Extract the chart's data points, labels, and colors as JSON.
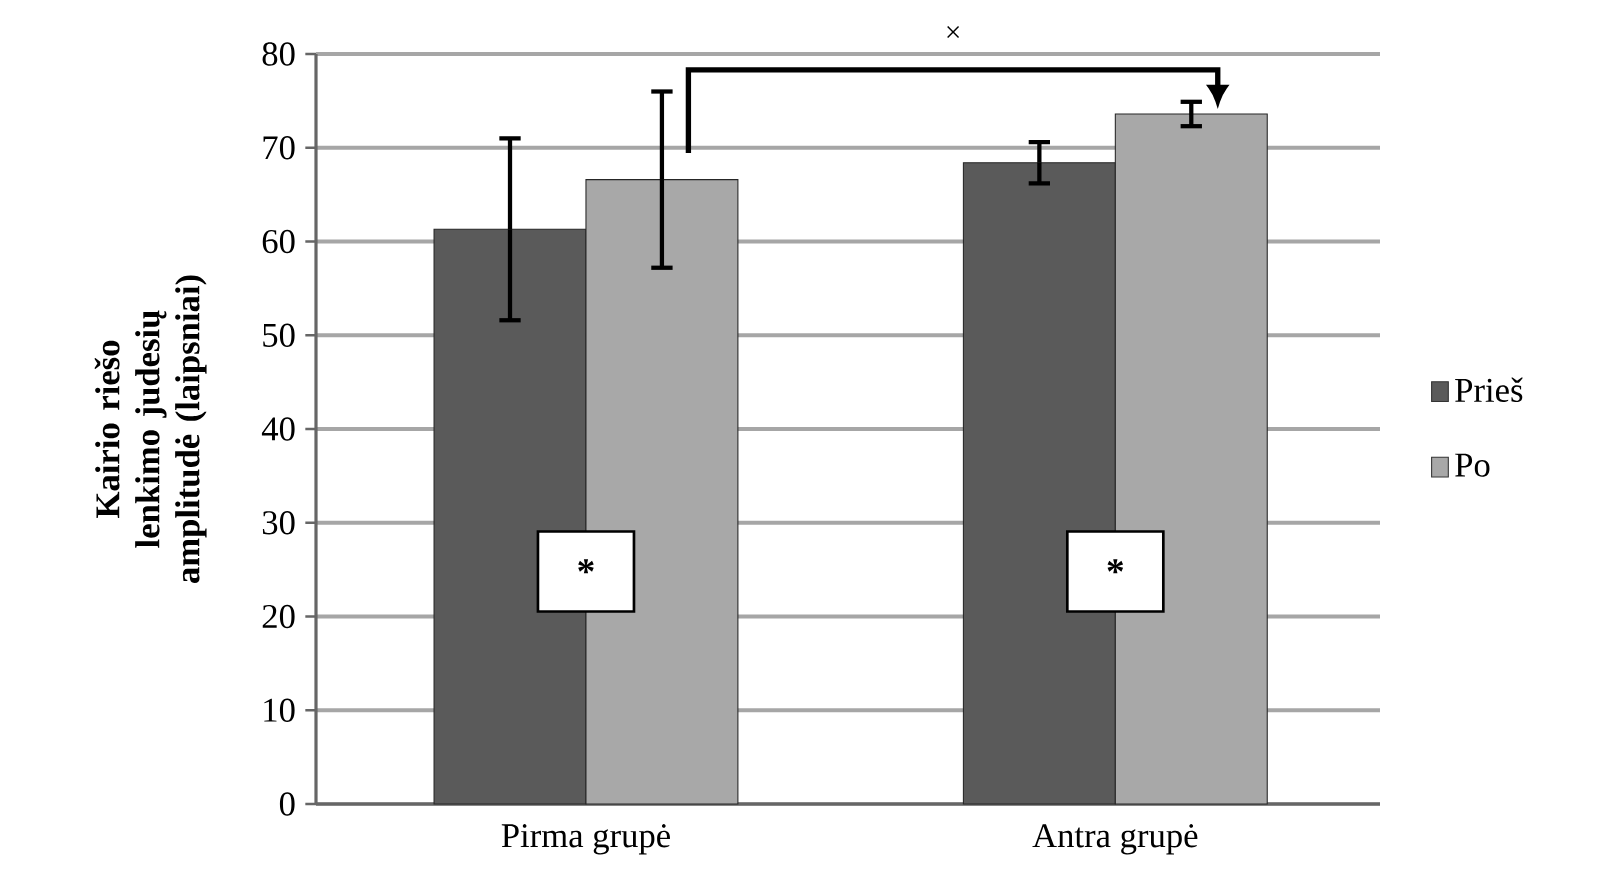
{
  "chart_data": {
    "type": "bar",
    "categories": [
      "Pirma grupė",
      "Antra grupė"
    ],
    "series": [
      {
        "name": "Prieš",
        "color": "#5a5a5a",
        "values": [
          61.3,
          68.4
        ],
        "errors": [
          9.7,
          2.2
        ]
      },
      {
        "name": "Po",
        "color": "#a8a8a8",
        "values": [
          66.6,
          73.6
        ],
        "errors": [
          9.4,
          1.3
        ]
      }
    ],
    "ylabel": "Kairio riešo lenkimo judesių amplitudė (laipsniai)",
    "ylim": [
      0,
      80
    ],
    "yticks": [
      0,
      10,
      20,
      30,
      40,
      50,
      60,
      70,
      80
    ],
    "grid": "y",
    "legend": "right",
    "annotations": [
      "×",
      "*",
      "*"
    ]
  }
}
